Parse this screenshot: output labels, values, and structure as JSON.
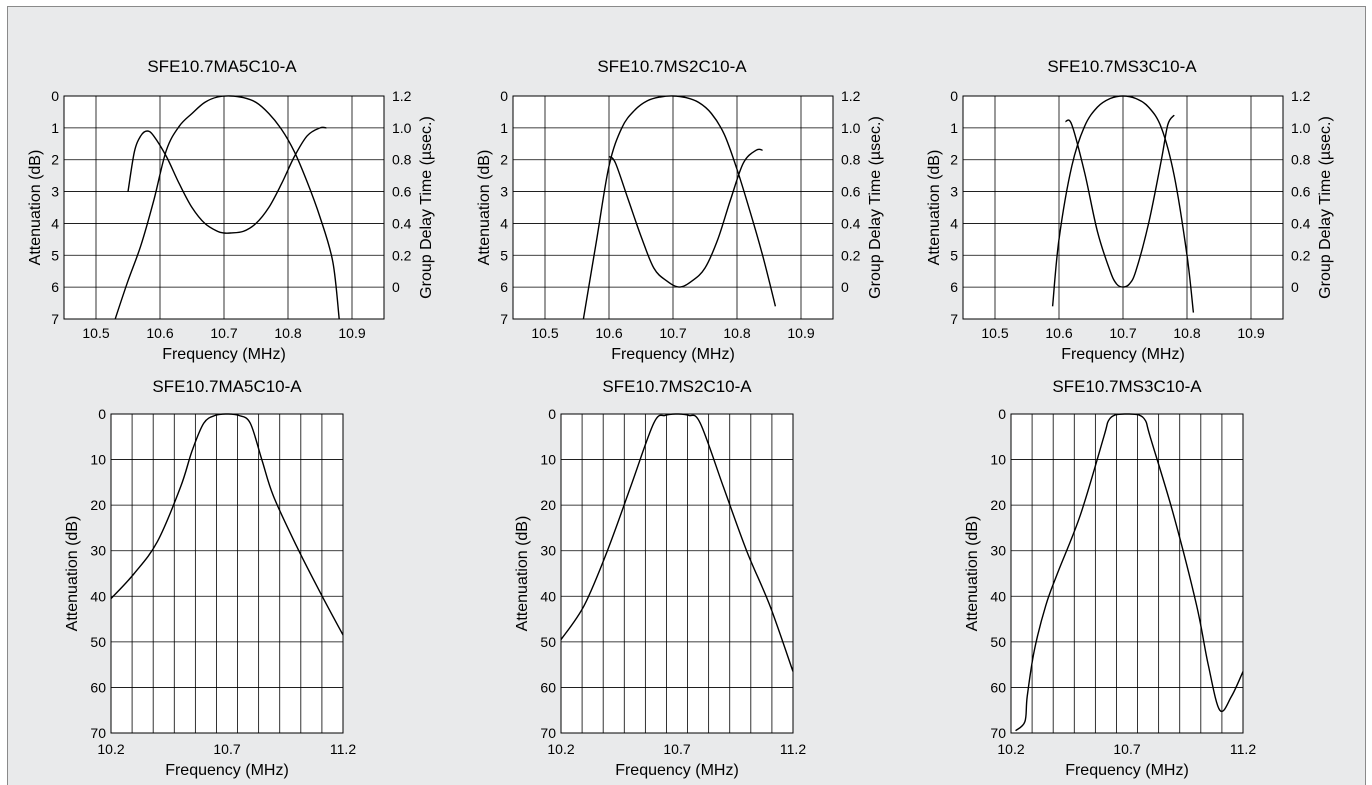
{
  "chart_data": [
    {
      "type": "line",
      "title": "SFE10.7MA5C10-A",
      "xlabel": "Frequency (MHz)",
      "ylabel": "Attenuation (dB)",
      "y2label": "Group Delay Time (µsec.)",
      "xlim": [
        10.45,
        10.95
      ],
      "ylim": [
        7,
        0
      ],
      "y2lim": [
        -0.2,
        1.2
      ],
      "xticks": [
        "10.5",
        "10.6",
        "10.7",
        "10.8",
        "10.9"
      ],
      "yticks": [
        "0",
        "1",
        "2",
        "3",
        "4",
        "5",
        "6",
        "7"
      ],
      "y2ticks": [
        "1.2",
        "1.0",
        "0.8",
        "0.6",
        "0.4",
        "0.2",
        "0"
      ],
      "grid": true,
      "series": [
        {
          "axis": "left",
          "x": [
            10.53,
            10.55,
            10.57,
            10.59,
            10.61,
            10.63,
            10.65,
            10.67,
            10.69,
            10.71,
            10.73,
            10.75,
            10.77,
            10.79,
            10.81,
            10.83,
            10.85,
            10.87,
            10.88
          ],
          "y": [
            7.0,
            5.8,
            4.7,
            3.3,
            1.7,
            0.95,
            0.55,
            0.2,
            0.03,
            0.0,
            0.05,
            0.2,
            0.55,
            1.05,
            1.75,
            2.7,
            3.8,
            5.2,
            7.0
          ]
        },
        {
          "axis": "right",
          "x": [
            10.55,
            10.56,
            10.57,
            10.58,
            10.59,
            10.61,
            10.63,
            10.65,
            10.67,
            10.69,
            10.7,
            10.71,
            10.73,
            10.75,
            10.77,
            10.79,
            10.81,
            10.83,
            10.85,
            10.86
          ],
          "y": [
            0.6,
            0.85,
            0.95,
            0.98,
            0.95,
            0.82,
            0.65,
            0.5,
            0.4,
            0.35,
            0.34,
            0.34,
            0.35,
            0.4,
            0.5,
            0.65,
            0.82,
            0.95,
            1.0,
            1.0
          ]
        }
      ]
    },
    {
      "type": "line",
      "title": "SFE10.7MS2C10-A",
      "xlabel": "Frequency (MHz)",
      "ylabel": "Attenuation (dB)",
      "y2label": "Group Delay Time (µsec.)",
      "xlim": [
        10.45,
        10.95
      ],
      "ylim": [
        7,
        0
      ],
      "y2lim": [
        -0.2,
        1.2
      ],
      "xticks": [
        "10.5",
        "10.6",
        "10.7",
        "10.8",
        "10.9"
      ],
      "yticks": [
        "0",
        "1",
        "2",
        "3",
        "4",
        "5",
        "6",
        "7"
      ],
      "y2ticks": [
        "1.2",
        "1.0",
        "0.8",
        "0.6",
        "0.4",
        "0.2",
        "0"
      ],
      "grid": true,
      "series": [
        {
          "axis": "left",
          "x": [
            10.56,
            10.58,
            10.6,
            10.62,
            10.64,
            10.66,
            10.68,
            10.7,
            10.72,
            10.74,
            10.76,
            10.78,
            10.8,
            10.82,
            10.84,
            10.86
          ],
          "y": [
            7.0,
            4.6,
            2.2,
            1.0,
            0.45,
            0.15,
            0.03,
            0.0,
            0.05,
            0.2,
            0.55,
            1.2,
            2.3,
            3.6,
            5.0,
            6.6
          ]
        },
        {
          "axis": "right",
          "x": [
            10.6,
            10.61,
            10.63,
            10.65,
            10.67,
            10.69,
            10.71,
            10.73,
            10.75,
            10.77,
            10.79,
            10.81,
            10.83,
            10.84
          ],
          "y": [
            0.82,
            0.78,
            0.55,
            0.32,
            0.12,
            0.04,
            0.0,
            0.04,
            0.12,
            0.3,
            0.55,
            0.78,
            0.86,
            0.86
          ]
        }
      ]
    },
    {
      "type": "line",
      "title": "SFE10.7MS3C10-A",
      "xlabel": "Frequency (MHz)",
      "ylabel": "Attenuation (dB)",
      "y2label": "Group Delay Time (µsec.)",
      "xlim": [
        10.45,
        10.95
      ],
      "ylim": [
        7,
        0
      ],
      "y2lim": [
        -0.2,
        1.2
      ],
      "xticks": [
        "10.5",
        "10.6",
        "10.7",
        "10.8",
        "10.9"
      ],
      "yticks": [
        "0",
        "1",
        "2",
        "3",
        "4",
        "5",
        "6",
        "7"
      ],
      "y2ticks": [
        "1.2",
        "1.0",
        "0.8",
        "0.6",
        "0.4",
        "0.2",
        "0"
      ],
      "grid": true,
      "series": [
        {
          "axis": "left",
          "x": [
            10.59,
            10.6,
            10.62,
            10.64,
            10.66,
            10.68,
            10.7,
            10.72,
            10.74,
            10.76,
            10.78,
            10.8,
            10.81
          ],
          "y": [
            6.6,
            4.5,
            2.2,
            0.95,
            0.35,
            0.08,
            0.0,
            0.08,
            0.35,
            1.0,
            2.5,
            5.0,
            6.8
          ]
        },
        {
          "axis": "right",
          "x": [
            10.61,
            10.62,
            10.64,
            10.66,
            10.68,
            10.69,
            10.7,
            10.71,
            10.72,
            10.74,
            10.76,
            10.77,
            10.78
          ],
          "y": [
            1.04,
            1.02,
            0.72,
            0.35,
            0.1,
            0.02,
            0.0,
            0.02,
            0.1,
            0.4,
            0.8,
            1.02,
            1.08
          ]
        }
      ]
    },
    {
      "type": "line",
      "title": "SFE10.7MA5C10-A",
      "xlabel": "Frequency (MHz)",
      "ylabel": "Attenuation (dB)",
      "xlim": [
        10.2,
        11.2
      ],
      "ylim": [
        70,
        0
      ],
      "xticks": [
        "10.2",
        "10.7",
        "11.2"
      ],
      "yticks": [
        "0",
        "10",
        "20",
        "30",
        "40",
        "50",
        "60",
        "70"
      ],
      "grid": true,
      "series": [
        {
          "axis": "left",
          "x": [
            10.2,
            10.3,
            10.4,
            10.5,
            10.55,
            10.6,
            10.65,
            10.7,
            10.75,
            10.8,
            10.85,
            10.9,
            11.0,
            11.1,
            11.2
          ],
          "y": [
            40.5,
            35,
            28,
            16,
            8,
            2,
            0.3,
            0,
            0.3,
            2,
            10,
            18,
            29,
            39,
            48.5
          ]
        }
      ]
    },
    {
      "type": "line",
      "title": "SFE10.7MS2C10-A",
      "xlabel": "Frequency (MHz)",
      "ylabel": "Attenuation (dB)",
      "xlim": [
        10.2,
        11.2
      ],
      "ylim": [
        70,
        0
      ],
      "xticks": [
        "10.2",
        "10.7",
        "11.2"
      ],
      "yticks": [
        "0",
        "10",
        "20",
        "30",
        "40",
        "50",
        "60",
        "70"
      ],
      "grid": true,
      "series": [
        {
          "axis": "left",
          "x": [
            10.2,
            10.3,
            10.4,
            10.5,
            10.6,
            10.65,
            10.7,
            10.75,
            10.8,
            10.9,
            11.0,
            11.1,
            11.2
          ],
          "y": [
            49.5,
            42,
            30,
            16,
            2,
            0.3,
            0,
            0.3,
            2,
            16,
            30,
            42,
            56.5
          ]
        }
      ]
    },
    {
      "type": "line",
      "title": "SFE10.7MS3C10-A",
      "xlabel": "Frequency (MHz)",
      "ylabel": "Attenuation (dB)",
      "xlim": [
        10.2,
        11.2
      ],
      "ylim": [
        70,
        0
      ],
      "xticks": [
        "10.2",
        "10.7",
        "11.2"
      ],
      "yticks": [
        "0",
        "10",
        "20",
        "30",
        "40",
        "50",
        "60",
        "70"
      ],
      "grid": true,
      "series": [
        {
          "axis": "left",
          "x": [
            10.22,
            10.26,
            10.27,
            10.3,
            10.35,
            10.4,
            10.5,
            10.6,
            10.62,
            10.65,
            10.7,
            10.75,
            10.78,
            10.8,
            10.9,
            11.0,
            11.05,
            11.1,
            11.15,
            11.2
          ],
          "y": [
            69.5,
            67.5,
            62,
            52,
            42,
            35,
            22,
            5,
            1.5,
            0.2,
            0,
            0.2,
            1.5,
            5,
            22,
            42,
            55,
            65,
            62,
            56.5
          ]
        }
      ]
    }
  ]
}
